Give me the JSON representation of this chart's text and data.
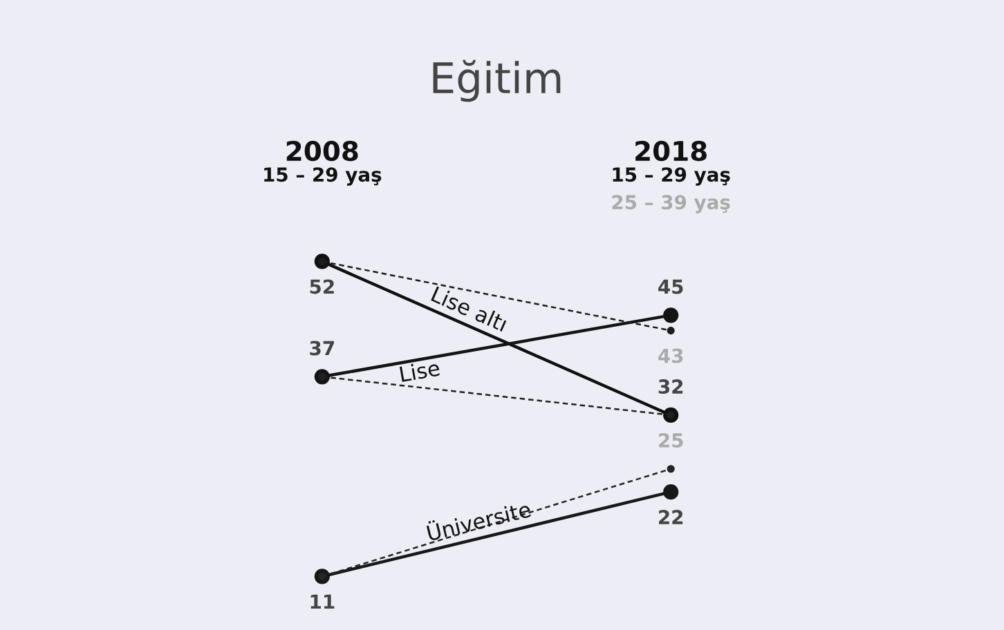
{
  "chart_data": {
    "type": "line",
    "title": "Eğitim",
    "categories": [
      "2008",
      "2018"
    ],
    "annotations": [
      "15 – 29 yaş",
      "15 – 29 yaş",
      "25 – 39 yaş"
    ],
    "series": [
      {
        "name": "Lise altı",
        "color": "#101010",
        "values": [
          52,
          32
        ],
        "line_style": "solid",
        "value_labels": [
          "52",
          "32"
        ]
      },
      {
        "name": "Lise",
        "color": "#141414",
        "values": [
          37,
          45
        ],
        "line_style": "solid",
        "value_labels": [
          "37",
          "45"
        ]
      },
      {
        "name": "Üniversite",
        "color": "#181818",
        "values": [
          11,
          22
        ],
        "line_style": "solid",
        "value_labels": [
          "11",
          "22"
        ]
      },
      {
        "color": "#1c1c1c",
        "values": [
          52,
          43
        ],
        "line_style": "dashed",
        "value_labels": [
          null,
          "43"
        ]
      },
      {
        "color": "#202020",
        "values": [
          37,
          32
        ],
        "line_style": "dashed",
        "value_labels": [
          null,
          null
        ]
      },
      {
        "color": "#242424",
        "values": [
          11,
          25
        ],
        "line_style": "dashed",
        "value_labels": [
          null,
          "25"
        ]
      }
    ],
    "marker": "circle"
  }
}
